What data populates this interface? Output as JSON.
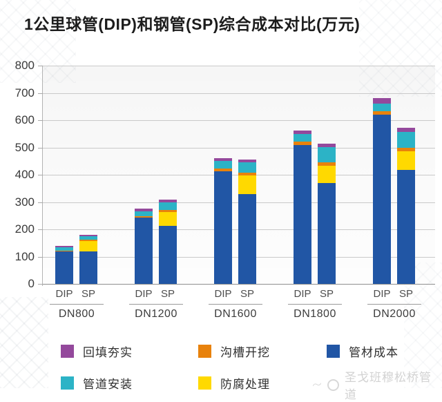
{
  "title": "1公里球管(DIP)和钢管(SP)综合成本对比(万元)",
  "watermark": {
    "text": "圣戈班穆松桥管道"
  },
  "colors": {
    "material_blue": "#2156a5",
    "anticorrosion_yellow": "#ffd900",
    "excavation_orange": "#e8820c",
    "installation_teal": "#2cb3c6",
    "backfill_purple": "#94499c",
    "gridline": "#c9c9c9"
  },
  "chart_data": {
    "type": "bar",
    "stacked": true,
    "title": "1公里球管(DIP)和钢管(SP)综合成本对比(万元)",
    "unit": "万元",
    "ylim": [
      0,
      800
    ],
    "yticks": [
      0,
      100,
      200,
      300,
      400,
      500,
      600,
      700,
      800
    ],
    "grid": true,
    "groups": [
      "DN800",
      "DN1200",
      "DN1600",
      "DN1800",
      "DN2000"
    ],
    "bar_labels": [
      "DIP",
      "SP"
    ],
    "series": [
      {
        "key": "material-cost",
        "name": "管材成本",
        "color": "#2156a5",
        "values": {
          "DIP": [
            118,
            242,
            413,
            510,
            620
          ],
          "SP": [
            120,
            213,
            330,
            370,
            417
          ]
        }
      },
      {
        "key": "anticorrosion",
        "name": "防腐处理",
        "color": "#ffd900",
        "values": {
          "DIP": [
            0,
            0,
            0,
            0,
            0
          ],
          "SP": [
            38,
            51,
            67,
            64,
            70
          ]
        }
      },
      {
        "key": "excavation",
        "name": "沟槽开挖",
        "color": "#e8820c",
        "values": {
          "DIP": [
            4,
            5,
            9,
            12,
            14
          ],
          "SP": [
            3,
            8,
            10,
            12,
            13
          ]
        }
      },
      {
        "key": "installation",
        "name": "管道安装",
        "color": "#2cb3c6",
        "values": {
          "DIP": [
            12,
            20,
            28,
            28,
            28
          ],
          "SP": [
            14,
            26,
            38,
            55,
            57
          ]
        }
      },
      {
        "key": "backfill",
        "name": "回填夯实",
        "color": "#94499c",
        "values": {
          "DIP": [
            6,
            8,
            11,
            13,
            18
          ],
          "SP": [
            5,
            12,
            10,
            14,
            16
          ]
        }
      }
    ],
    "totals": {
      "DIP": [
        140,
        275,
        461,
        563,
        680
      ],
      "SP": [
        180,
        310,
        455,
        515,
        573
      ]
    },
    "legend_order": [
      "回填夯实",
      "沟槽开挖",
      "管材成本",
      "管道安装",
      "防腐处理"
    ],
    "legend_position": "bottom"
  }
}
